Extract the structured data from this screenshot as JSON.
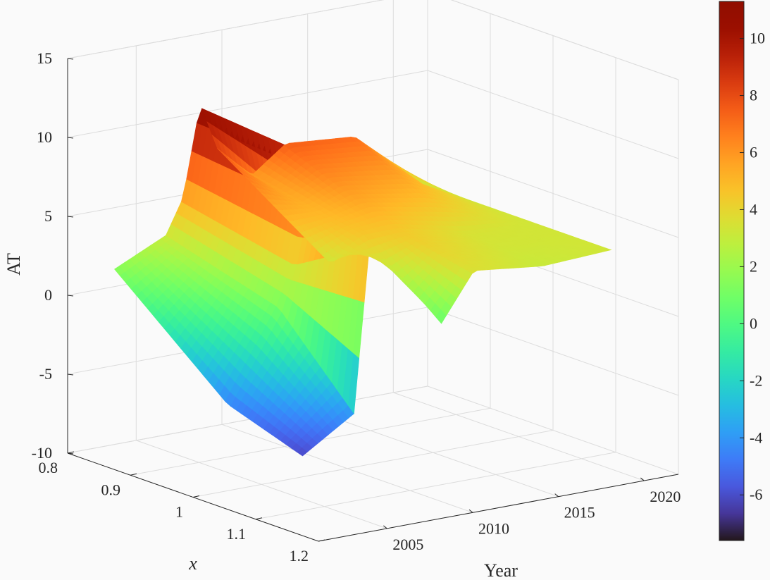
{
  "chart_data": {
    "type": "surface3d",
    "title": "",
    "xlabel": "x",
    "ylabel": "Year",
    "zlabel": "AT",
    "x_ticks": [
      0.8,
      0.9,
      1,
      1.1,
      1.2
    ],
    "x_tick_labels": [
      "0.8",
      "0.9",
      "1",
      "1.1",
      "1.2"
    ],
    "y_ticks": [
      2005,
      2010,
      2015,
      2020
    ],
    "y_tick_labels": [
      "2005",
      "2010",
      "2015",
      "2020"
    ],
    "z_ticks": [
      -10,
      -5,
      0,
      5,
      10,
      15
    ],
    "z_tick_labels": [
      "-10",
      "-5",
      "0",
      "5",
      "10",
      "15"
    ],
    "xlim": [
      0.8,
      1.2
    ],
    "ylim": [
      2001,
      2022
    ],
    "zlim": [
      -10,
      15
    ],
    "colormap": "turbo",
    "colorbar": {
      "range": [
        -7.6,
        11.3
      ],
      "ticks": [
        -6,
        -4,
        -2,
        0,
        2,
        4,
        6,
        8,
        10
      ],
      "tick_labels": [
        "-6",
        "-4",
        "-2",
        "0",
        "2",
        "4",
        "6",
        "8",
        "10"
      ],
      "placement": "right"
    },
    "grid": true,
    "surface_profiles": [
      {
        "year": 2003,
        "values": [
          2.2,
          -4.5,
          -7.2
        ]
      },
      {
        "year": 2006,
        "values": [
          3.3,
          1.0,
          -7.4
        ]
      },
      {
        "year": 2007,
        "values": [
          5.4,
          3.8,
          10.0
        ]
      },
      {
        "year": 2008,
        "values": [
          11.0,
          10.8,
          0.5
        ]
      },
      {
        "year": 2009,
        "values": [
          8.5,
          3.2,
          10.5
        ]
      },
      {
        "year": 2011,
        "values": [
          6.0,
          4.5,
          -2.2
        ]
      },
      {
        "year": 2013,
        "values": [
          7.8,
          4.5,
          3.0
        ]
      },
      {
        "year": 2017,
        "values": [
          7.5,
          3.5,
          2.8
        ]
      },
      {
        "year": 2021,
        "values": [
          3.3,
          3.3,
          3.3
        ]
      }
    ]
  }
}
